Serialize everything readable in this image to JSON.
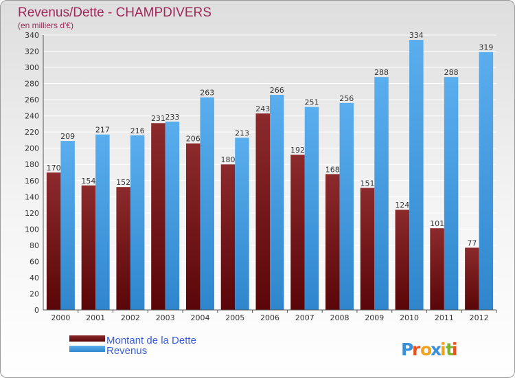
{
  "chart_data": {
    "type": "bar",
    "title": "Revenus/Dette - CHAMPDIVERS",
    "subtitle": "(en milliers d'€)",
    "categories": [
      "2000",
      "2001",
      "2002",
      "2003",
      "2004",
      "2005",
      "2006",
      "2007",
      "2008",
      "2009",
      "2010",
      "2011",
      "2012"
    ],
    "series": [
      {
        "name": "Montant de la Dette",
        "color": "#7a1416",
        "values": [
          170,
          154,
          152,
          231,
          206,
          180,
          243,
          192,
          168,
          151,
          124,
          101,
          77
        ]
      },
      {
        "name": "Revenus",
        "color": "#4da3e6",
        "values": [
          209,
          217,
          216,
          233,
          263,
          213,
          266,
          251,
          256,
          288,
          334,
          288,
          319
        ]
      }
    ],
    "ylim": [
      0,
      340
    ],
    "yticks": [
      0,
      20,
      40,
      60,
      80,
      100,
      120,
      140,
      160,
      180,
      200,
      220,
      240,
      260,
      280,
      300,
      320,
      340
    ],
    "grid": true,
    "legend_position": "bottom-left"
  },
  "logo": {
    "text": "Proxiti"
  }
}
